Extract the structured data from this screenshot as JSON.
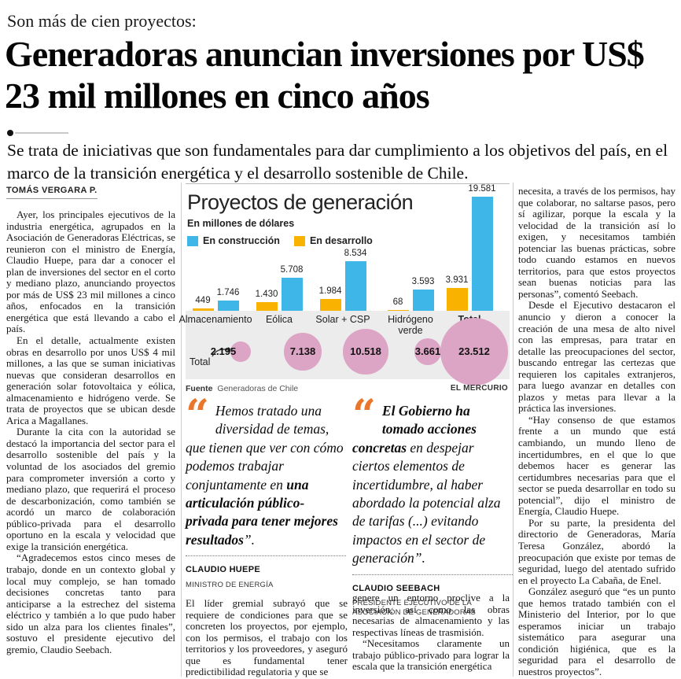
{
  "kicker": "Son más de cien proyectos:",
  "headline": "Generadoras anuncian inversiones por US$ 23 mil millones en cinco años",
  "deck": "Se trata de iniciativas que son fundamentales para dar cumplimiento a los objetivos del país, en el marco de la transición energética y el desarrollo sostenible de Chile.",
  "byline": "TOMÁS VERGARA P.",
  "article": {
    "left": [
      "Ayer, los principales ejecutivos de la industria energética, agrupados en la Asociación de Generadoras Eléctricas, se reunieron con el ministro de Energía, Claudio Huepe, para dar a conocer el plan de inversiones del sector en el corto y mediano plazo, anunciando proyectos por más de US$ 23 mil millones a cinco años, enfocados en la transición energética que está llevando a cabo el país.",
      "En el detalle, actualmente existen obras en desarrollo por unos US$ 4 mil millones, a las que se suman iniciativas nuevas que consideran desarrollos en generación solar fotovoltaica y eólica, almacenamiento e hidrógeno verde. Se trata de proyectos que se ubican desde Arica a Magallanes.",
      "Durante la cita con la autoridad se destacó la importancia del sector para el desarrollo sostenible del país y la voluntad de los asociados del gremio para comprometer inversión a corto y mediano plazo, que requerirá el proceso de descarbonización, como también se acordó un marco de colaboración público-privada para el desarrollo oportuno en la escala y velocidad que exige la transición energética.",
      "“Agradecemos estos cinco meses de trabajo, donde en un contexto global y local muy complejo, se han tomado decisiones concretas tanto para anticiparse a la estrechez del sistema eléctrico y también a lo que pudo haber sido un alza para los clientes finales”, sostuvo el presidente ejecutivo del gremio, Claudio Seebach."
    ],
    "mid1": [
      "El líder gremial subrayó que se requiere de condiciones para que se concreten los proyectos, por ejemplo, con los permisos, el trabajo con los territorios y los proveedores, y aseguró que es fundamental tener predictibilidad regulatoria y que se"
    ],
    "mid2": [
      "genere un entorno proclive a la inversión, así como las obras necesarias de almacenamiento y las respectivas líneas de trasmisión.",
      "“Necesitamos claramente un trabajo público-privado para lograr la escala que la transición energética"
    ],
    "right": [
      "necesita, a través de los permisos, hay que colaborar, no saltarse pasos, pero sí agilizar, porque la escala y la velocidad de la transición así lo exigen, y necesitamos también potenciar las buenas prácticas, sobre todo cuando estamos en nuevos territorios, para que estos proyectos sean buenas noticias para las personas”, comentó Seebach.",
      "Desde el Ejecutivo destacaron el anuncio y dieron a conocer la creación de una mesa de alto nivel con las empresas, para tratar en detalle las preocupaciones del sector, buscando entregar las certezas que requieren los capitales extranjeros, para luego avanzar en detalles con plazos y metas para llevar a la práctica las inversiones.",
      "“Hay consenso de que estamos frente a un mundo que está cambiando, un mundo lleno de incertidumbres, en el que lo que debemos hacer es generar las certidumbres necesarias para que el sector se pueda desarrollar en todo su potencial”, dijo el ministro de Energía, Claudio Huepe.",
      "Por su parte, la presidenta del directorio de Generadoras, María Teresa González, abordó la preocupación que existe por temas de seguridad, luego del atentado sufrido en el proyecto La Cabaña, de Enel.",
      "González aseguró que “es un punto que hemos tratado también con el Ministerio del Interior, por lo que esperamos iniciar un trabajo sistemático para asegurar una condición higiénica, que es la seguridad para el desarrollo de nuestros proyectos”."
    ]
  },
  "quotes": [
    {
      "mark": "“",
      "lead": "Hemos tratado una diversidad de temas, que tienen que ver con cómo podemos trabajar conjuntamente en ",
      "bold": "una articulación público-privada para tener mejores resultados",
      "tail": "”.",
      "author": "CLAUDIO HUEPE",
      "role": "MINISTRO DE ENERGÍA"
    },
    {
      "mark": "“",
      "bold": "El Gobierno ha tomado acciones concretas",
      "rest": " en despejar ciertos elementos de incertidumbre, al haber abordado la potencial alza de tarifas (...) evitando impactos en el sector de generación”.",
      "author": "CLAUDIO SEEBACH",
      "role": "PRESIDENTE EJECUTIVO DE LA ASOCIACIÓN DE GENERADORAS"
    }
  ],
  "chart_data": {
    "type": "bar",
    "title": "Proyectos de generación",
    "subtitle": "En millones de dólares",
    "categories": [
      "Almacenamiento",
      "Eólica",
      "Solar + CSP",
      "Hidrógeno verde",
      "Total"
    ],
    "legend": [
      {
        "label": "En construcción",
        "color": "#3eb6e8"
      },
      {
        "label": "En desarrollo",
        "color": "#f9b200"
      }
    ],
    "series": [
      {
        "name": "En desarrollo",
        "color": "#f9b200",
        "values": [
          449,
          1430,
          1984,
          68,
          3931
        ],
        "labels": [
          "449",
          "1.430",
          "1.984",
          "68",
          "3.931"
        ]
      },
      {
        "name": "En construcción",
        "color": "#3eb6e8",
        "values": [
          1746,
          5708,
          8534,
          3593,
          19581
        ],
        "labels": [
          "1.746",
          "5.708",
          "8.534",
          "3.593",
          "19.581"
        ]
      }
    ],
    "totals": {
      "label": "Total",
      "color": "#dca5c5",
      "values": [
        2195,
        7138,
        10518,
        3661,
        23512
      ],
      "labels": [
        "2.195",
        "7.138",
        "10.518",
        "3.661",
        "23.512"
      ]
    },
    "axis_max": 19581,
    "grid": false,
    "legend_position": "top-left",
    "source_label": "Fuente",
    "source": "Generadoras de Chile",
    "credit": "EL MERCURIO"
  }
}
